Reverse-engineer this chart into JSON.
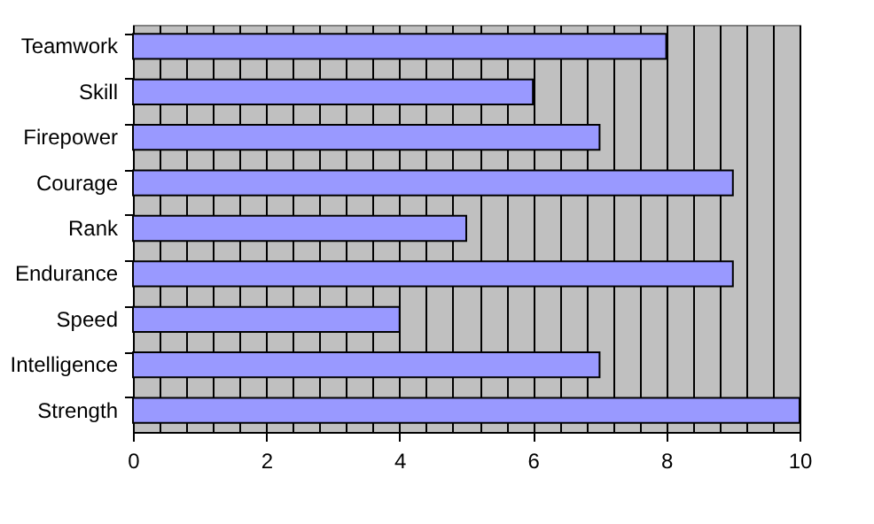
{
  "chart_data": {
    "type": "bar",
    "orientation": "horizontal",
    "categories": [
      "Teamwork",
      "Skill",
      "Firepower",
      "Courage",
      "Rank",
      "Endurance",
      "Speed",
      "Intelligence",
      "Strength"
    ],
    "values": [
      8,
      6,
      7,
      9,
      5,
      9,
      4,
      7,
      10
    ],
    "color": "#9999ff",
    "xlim": [
      0,
      10
    ],
    "xticks": [
      0,
      {
        "value": 0.4,
        "label": null
      },
      {
        "value": 0.8,
        "label": null
      },
      {
        "value": 1.2,
        "label": null
      },
      {
        "value": 1.6,
        "label": null
      },
      2,
      {
        "value": 2.4,
        "label": null
      },
      {
        "value": 2.8,
        "label": null
      },
      {
        "value": 3.2,
        "label": null
      },
      {
        "value": 3.6,
        "label": null
      },
      4,
      {
        "value": 4.4,
        "label": null
      },
      {
        "value": 4.8,
        "label": null
      },
      {
        "value": 5.2,
        "label": null
      },
      {
        "value": 5.6,
        "label": null
      },
      6,
      {
        "value": 6.4,
        "label": null
      },
      {
        "value": 6.8,
        "label": null
      },
      {
        "value": 7.2,
        "label": null
      },
      {
        "value": 7.6,
        "label": null
      },
      8,
      {
        "value": 8.4,
        "label": null
      },
      {
        "value": 8.8,
        "label": null
      },
      {
        "value": 9.2,
        "label": null
      },
      {
        "value": 9.6,
        "label": null
      },
      10
    ],
    "grid": "x"
  }
}
